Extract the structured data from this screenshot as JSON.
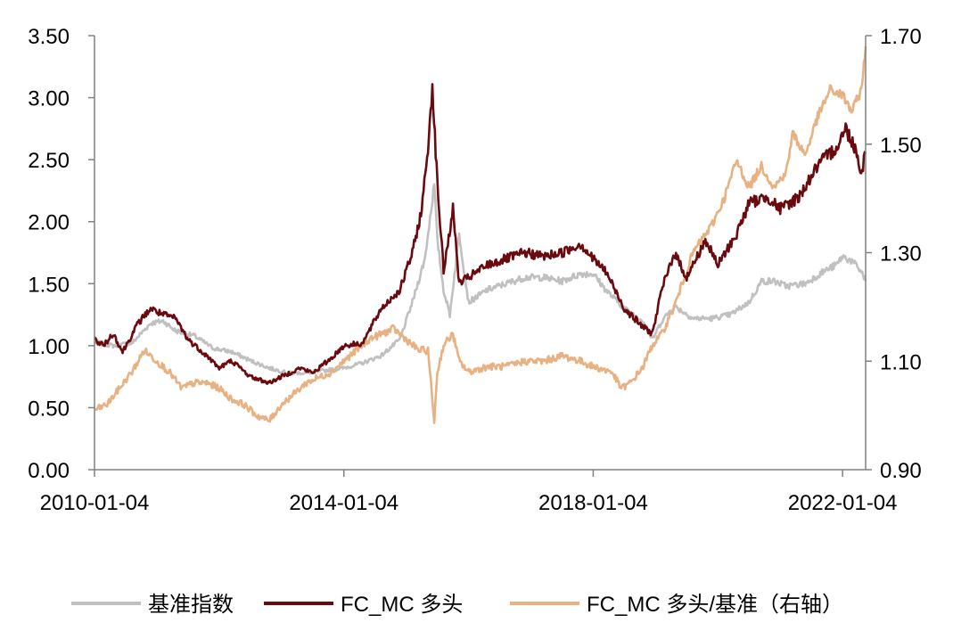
{
  "chart_data": {
    "type": "line",
    "x_tick_labels": [
      "2010-01-04",
      "2014-01-04",
      "2018-01-04",
      "2022-01-04"
    ],
    "x_tick_values": [
      2010.0,
      2014.0,
      2018.0,
      2022.0
    ],
    "xlim": [
      2010.0,
      2022.37
    ],
    "y_left": {
      "ylim": [
        0,
        3.5
      ],
      "ticks": [
        "0.00",
        "0.50",
        "1.00",
        "1.50",
        "2.00",
        "2.50",
        "3.00",
        "3.50"
      ]
    },
    "y_right": {
      "ylim": [
        0.9,
        1.7
      ],
      "ticks": [
        "0.90",
        "1.10",
        "1.30",
        "1.50",
        "1.70"
      ]
    },
    "grid": false,
    "legend_position": "bottom",
    "series": [
      {
        "name": "基准指数",
        "axis": "left",
        "color": "#c0c0c0",
        "points": [
          [
            2010.0,
            1.03
          ],
          [
            2010.3,
            1.0
          ],
          [
            2010.6,
            1.02
          ],
          [
            2010.9,
            1.18
          ],
          [
            2011.1,
            1.2
          ],
          [
            2011.3,
            1.12
          ],
          [
            2011.6,
            1.08
          ],
          [
            2011.9,
            0.98
          ],
          [
            2012.2,
            0.95
          ],
          [
            2012.5,
            0.88
          ],
          [
            2012.8,
            0.82
          ],
          [
            2013.1,
            0.78
          ],
          [
            2013.4,
            0.78
          ],
          [
            2013.7,
            0.8
          ],
          [
            2014.0,
            0.82
          ],
          [
            2014.3,
            0.86
          ],
          [
            2014.6,
            0.92
          ],
          [
            2014.9,
            1.05
          ],
          [
            2015.1,
            1.35
          ],
          [
            2015.3,
            1.7
          ],
          [
            2015.45,
            2.3
          ],
          [
            2015.5,
            1.85
          ],
          [
            2015.6,
            1.45
          ],
          [
            2015.7,
            1.25
          ],
          [
            2015.85,
            1.9
          ],
          [
            2016.0,
            1.35
          ],
          [
            2016.3,
            1.45
          ],
          [
            2016.6,
            1.5
          ],
          [
            2016.9,
            1.55
          ],
          [
            2017.2,
            1.55
          ],
          [
            2017.5,
            1.52
          ],
          [
            2017.8,
            1.58
          ],
          [
            2018.0,
            1.58
          ],
          [
            2018.2,
            1.45
          ],
          [
            2018.5,
            1.3
          ],
          [
            2018.8,
            1.2
          ],
          [
            2018.95,
            1.05
          ],
          [
            2019.1,
            1.2
          ],
          [
            2019.3,
            1.32
          ],
          [
            2019.6,
            1.22
          ],
          [
            2019.9,
            1.22
          ],
          [
            2020.2,
            1.25
          ],
          [
            2020.5,
            1.35
          ],
          [
            2020.7,
            1.52
          ],
          [
            2020.9,
            1.52
          ],
          [
            2021.1,
            1.48
          ],
          [
            2021.4,
            1.5
          ],
          [
            2021.7,
            1.6
          ],
          [
            2021.9,
            1.65
          ],
          [
            2022.0,
            1.72
          ],
          [
            2022.15,
            1.68
          ],
          [
            2022.3,
            1.6
          ],
          [
            2022.37,
            1.52
          ]
        ]
      },
      {
        "name": "FC_MC 多头",
        "axis": "left",
        "color": "#6b0a0e",
        "points": [
          [
            2010.0,
            1.05
          ],
          [
            2010.15,
            1.0
          ],
          [
            2010.3,
            1.1
          ],
          [
            2010.45,
            0.95
          ],
          [
            2010.7,
            1.18
          ],
          [
            2010.9,
            1.3
          ],
          [
            2011.1,
            1.25
          ],
          [
            2011.3,
            1.22
          ],
          [
            2011.5,
            1.05
          ],
          [
            2011.8,
            0.92
          ],
          [
            2012.0,
            0.82
          ],
          [
            2012.2,
            0.88
          ],
          [
            2012.5,
            0.75
          ],
          [
            2012.8,
            0.7
          ],
          [
            2013.0,
            0.75
          ],
          [
            2013.3,
            0.82
          ],
          [
            2013.5,
            0.78
          ],
          [
            2013.8,
            0.9
          ],
          [
            2014.0,
            1.0
          ],
          [
            2014.3,
            1.02
          ],
          [
            2014.6,
            1.3
          ],
          [
            2014.9,
            1.45
          ],
          [
            2015.1,
            1.75
          ],
          [
            2015.25,
            2.1
          ],
          [
            2015.35,
            2.6
          ],
          [
            2015.42,
            3.1
          ],
          [
            2015.5,
            2.3
          ],
          [
            2015.6,
            1.6
          ],
          [
            2015.75,
            2.1
          ],
          [
            2015.85,
            1.5
          ],
          [
            2016.0,
            1.55
          ],
          [
            2016.3,
            1.65
          ],
          [
            2016.6,
            1.7
          ],
          [
            2016.9,
            1.75
          ],
          [
            2017.2,
            1.72
          ],
          [
            2017.5,
            1.75
          ],
          [
            2017.8,
            1.82
          ],
          [
            2018.0,
            1.7
          ],
          [
            2018.2,
            1.6
          ],
          [
            2018.5,
            1.3
          ],
          [
            2018.8,
            1.15
          ],
          [
            2018.95,
            1.1
          ],
          [
            2019.1,
            1.45
          ],
          [
            2019.3,
            1.75
          ],
          [
            2019.5,
            1.55
          ],
          [
            2019.8,
            1.85
          ],
          [
            2020.0,
            1.65
          ],
          [
            2020.3,
            1.9
          ],
          [
            2020.5,
            2.15
          ],
          [
            2020.8,
            2.2
          ],
          [
            2021.0,
            2.1
          ],
          [
            2021.3,
            2.2
          ],
          [
            2021.6,
            2.45
          ],
          [
            2021.9,
            2.6
          ],
          [
            2022.05,
            2.75
          ],
          [
            2022.2,
            2.6
          ],
          [
            2022.3,
            2.4
          ],
          [
            2022.37,
            2.55
          ]
        ]
      },
      {
        "name": "FC_MC 多头/基准（右轴）",
        "axis": "right",
        "color": "#e8b182",
        "points": [
          [
            2010.0,
            1.01
          ],
          [
            2010.2,
            1.02
          ],
          [
            2010.4,
            1.05
          ],
          [
            2010.6,
            1.08
          ],
          [
            2010.8,
            1.12
          ],
          [
            2011.0,
            1.1
          ],
          [
            2011.2,
            1.08
          ],
          [
            2011.4,
            1.05
          ],
          [
            2011.6,
            1.06
          ],
          [
            2011.8,
            1.06
          ],
          [
            2012.0,
            1.05
          ],
          [
            2012.2,
            1.03
          ],
          [
            2012.4,
            1.02
          ],
          [
            2012.6,
            1.0
          ],
          [
            2012.8,
            0.99
          ],
          [
            2013.0,
            1.02
          ],
          [
            2013.2,
            1.04
          ],
          [
            2013.4,
            1.06
          ],
          [
            2013.6,
            1.07
          ],
          [
            2013.8,
            1.08
          ],
          [
            2014.0,
            1.1
          ],
          [
            2014.2,
            1.12
          ],
          [
            2014.4,
            1.14
          ],
          [
            2014.6,
            1.15
          ],
          [
            2014.8,
            1.16
          ],
          [
            2015.0,
            1.14
          ],
          [
            2015.2,
            1.12
          ],
          [
            2015.35,
            1.12
          ],
          [
            2015.45,
            0.99
          ],
          [
            2015.5,
            1.08
          ],
          [
            2015.6,
            1.13
          ],
          [
            2015.75,
            1.15
          ],
          [
            2015.85,
            1.1
          ],
          [
            2016.0,
            1.08
          ],
          [
            2016.3,
            1.09
          ],
          [
            2016.6,
            1.09
          ],
          [
            2016.9,
            1.1
          ],
          [
            2017.2,
            1.1
          ],
          [
            2017.5,
            1.11
          ],
          [
            2017.8,
            1.1
          ],
          [
            2018.0,
            1.09
          ],
          [
            2018.3,
            1.08
          ],
          [
            2018.45,
            1.05
          ],
          [
            2018.6,
            1.06
          ],
          [
            2018.8,
            1.09
          ],
          [
            2018.95,
            1.13
          ],
          [
            2019.1,
            1.15
          ],
          [
            2019.3,
            1.2
          ],
          [
            2019.6,
            1.3
          ],
          [
            2019.9,
            1.35
          ],
          [
            2020.1,
            1.4
          ],
          [
            2020.3,
            1.47
          ],
          [
            2020.5,
            1.42
          ],
          [
            2020.7,
            1.46
          ],
          [
            2020.9,
            1.42
          ],
          [
            2021.1,
            1.45
          ],
          [
            2021.2,
            1.52
          ],
          [
            2021.4,
            1.48
          ],
          [
            2021.6,
            1.55
          ],
          [
            2021.8,
            1.6
          ],
          [
            2022.0,
            1.59
          ],
          [
            2022.15,
            1.56
          ],
          [
            2022.3,
            1.6
          ],
          [
            2022.37,
            1.68
          ]
        ]
      }
    ]
  },
  "legend": [
    {
      "label": "基准指数",
      "color": "#c0c0c0"
    },
    {
      "label": "FC_MC 多头",
      "color": "#6b0a0e"
    },
    {
      "label": "FC_MC 多头/基准（右轴）",
      "color": "#e8b182"
    }
  ]
}
